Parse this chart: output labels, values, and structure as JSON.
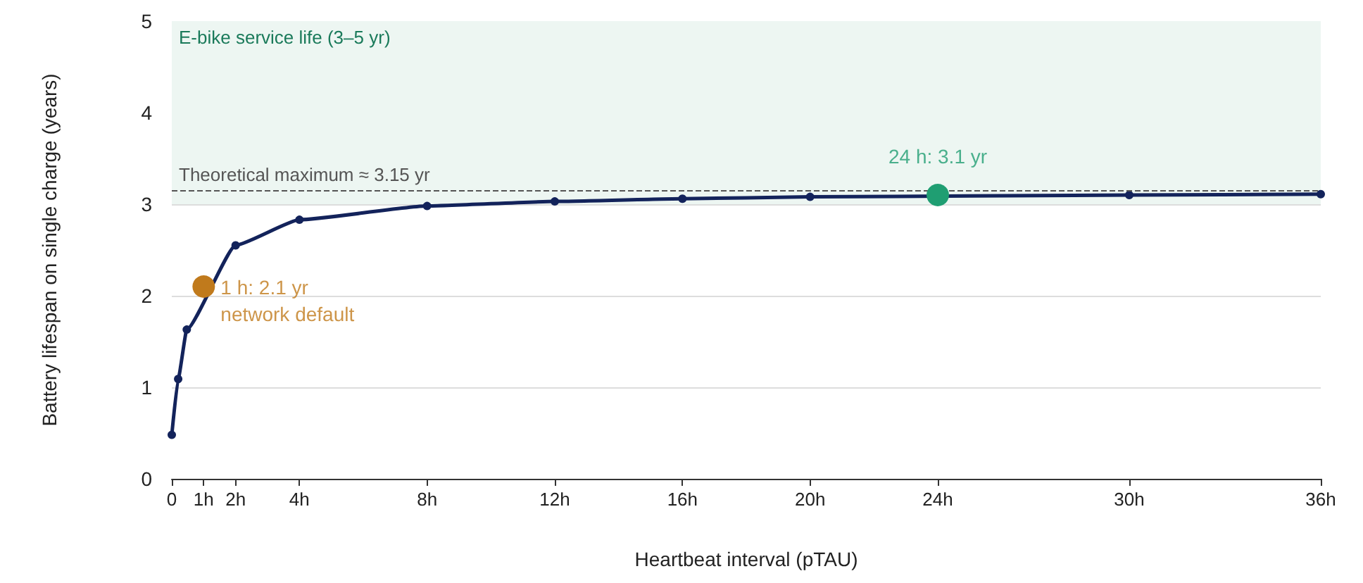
{
  "chart_data": {
    "type": "line",
    "xlabel": "Heartbeat interval (pTAU)",
    "ylabel": "Battery lifespan on single charge (years)",
    "xlim": [
      0,
      36
    ],
    "xticks": [
      0,
      {
        "value": 1,
        "label": "1h"
      },
      {
        "value": 2,
        "label": "2h"
      },
      {
        "value": 4,
        "label": "4h"
      },
      {
        "value": 8,
        "label": "8h"
      },
      {
        "value": 12,
        "label": "12h"
      },
      {
        "value": 16,
        "label": "16h"
      },
      {
        "value": 20,
        "label": "20h"
      },
      {
        "value": 24,
        "label": "24h"
      },
      {
        "value": 30,
        "label": "30h"
      },
      {
        "value": 36,
        "label": "36h"
      }
    ],
    "ylim": [
      0,
      5
    ],
    "yticks": [
      0,
      1,
      2,
      3,
      4,
      5
    ],
    "grid": "y",
    "marker": "circle",
    "line_style": "solid",
    "series": [
      {
        "color": "#13235b",
        "x": [
          0,
          0.2,
          0.47,
          2,
          4,
          8,
          12,
          16,
          20,
          24,
          30,
          36
        ],
        "values": [
          0.48,
          1.09,
          1.63,
          2.55,
          2.83,
          2.98,
          3.03,
          3.06,
          3.08,
          null,
          3.1,
          3.11
        ]
      },
      {
        "type": "scatter",
        "x": [
          1,
          24
        ],
        "values": [
          2.1,
          3.1
        ],
        "colors": [
          "#c07a1c",
          "#1f9e72"
        ]
      }
    ],
    "bands": [
      {
        "axis": "y",
        "from": 3,
        "to": 5,
        "label": "E-bike service life (3–5 yr)",
        "color": "#edf6f2"
      }
    ],
    "ref_lines": [
      {
        "axis": "y",
        "value": 3.15,
        "label": "Theoretical maximum ≈ 3.15 yr",
        "color": "#555555",
        "line_style": "dashed"
      }
    ],
    "annotations": [
      {
        "text": "1 h: 2.1 yr\nnetwork default",
        "x": 1,
        "y": 2.1
      },
      {
        "text": "24 h: 3.1 yr",
        "x": 24,
        "y": 3.1
      }
    ]
  }
}
